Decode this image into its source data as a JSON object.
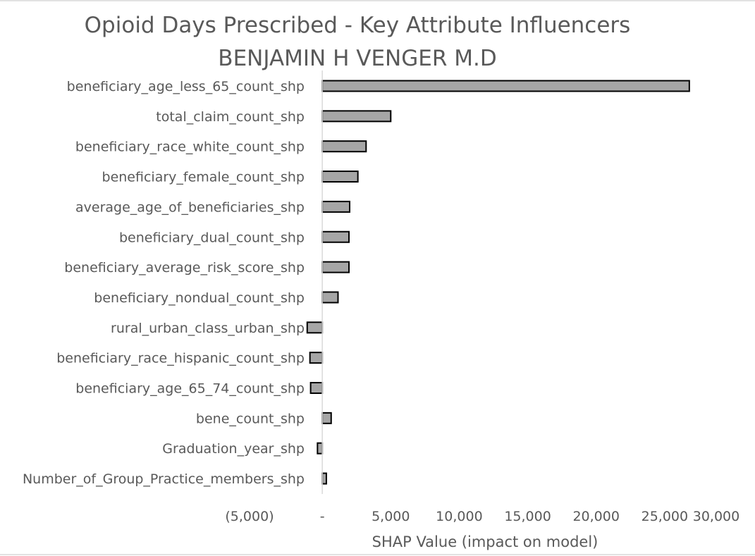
{
  "chart_data": {
    "type": "bar",
    "orientation": "horizontal",
    "title": "Opioid Days Prescribed - Key Attribute Influencers",
    "subtitle": "BENJAMIN H VENGER M.D",
    "xlabel": "SHAP Value (impact on model)",
    "ylabel": "",
    "xlim": [
      -5000,
      30000
    ],
    "xticks": [
      -5000,
      0,
      5000,
      10000,
      15000,
      20000,
      25000,
      30000
    ],
    "xtick_labels": [
      "(5,000)",
      "-",
      "5,000",
      "10,000",
      "15,000",
      "20,000",
      "25,000",
      "30,000"
    ],
    "grid": false,
    "legend": "none",
    "bar_color": "#a6a6a6",
    "categories": [
      "beneficiary_age_less_65_count_shp",
      "total_claim_count_shp",
      "beneficiary_race_white_count_shp",
      "beneficiary_female_count_shp",
      "average_age_of_beneficiaries_shp",
      "beneficiary_dual_count_shp",
      "beneficiary_average_risk_score_shp",
      "beneficiary_nondual_count_shp",
      "rural_urban_class_urban_shp",
      "beneficiary_race_hispanic_count_shp",
      "beneficiary_age_65_74_count_shp",
      "bene_count_shp",
      "Graduation_year_shp",
      "Number_of_Group_Practice_members_shp"
    ],
    "values": [
      26800,
      5000,
      3200,
      2600,
      2000,
      1950,
      1950,
      1150,
      -1100,
      -900,
      -850,
      650,
      -350,
      300
    ]
  }
}
